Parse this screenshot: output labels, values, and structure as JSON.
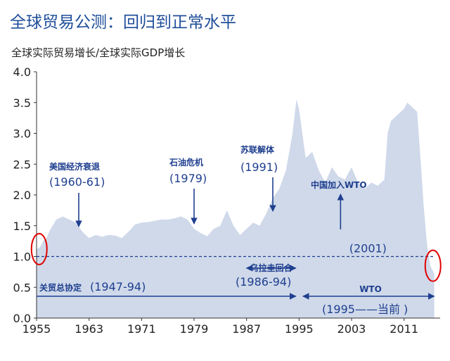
{
  "title": "全球贸易公测：回归到正常水平",
  "subtitle": "全球实际贸易增长/全球实际GDP增长",
  "chart_data": {
    "type": "area",
    "ylim": [
      0,
      4.0
    ],
    "yticks": [
      "0.0",
      "0.5",
      "1.0",
      "1.5",
      "2.0",
      "2.5",
      "3.0",
      "3.5",
      "4.0"
    ],
    "xticks": [
      {
        "year": 1955,
        "label": "1955"
      },
      {
        "year": 1963,
        "label": "1963"
      },
      {
        "year": 1971,
        "label": "1971"
      },
      {
        "year": 1979,
        "label": "1979"
      },
      {
        "year": 1987,
        "label": "1987"
      },
      {
        "year": 1995,
        "label": "1995"
      },
      {
        "year": 2003,
        "label": "2003"
      },
      {
        "year": 2011,
        "label": "2011"
      }
    ],
    "xlim": [
      1955,
      2016.5
    ],
    "reference_line": {
      "value": 1.0,
      "label": "(2001)"
    },
    "series": [
      {
        "color": "#cfd9ea",
        "points": [
          [
            1955,
            1.12
          ],
          [
            1955.5,
            1.15
          ],
          [
            1956,
            1.25
          ],
          [
            1956.5,
            1.3
          ],
          [
            1957,
            1.42
          ],
          [
            1958,
            1.6
          ],
          [
            1959,
            1.65
          ],
          [
            1960,
            1.6
          ],
          [
            1961,
            1.55
          ],
          [
            1962,
            1.4
          ],
          [
            1963,
            1.3
          ],
          [
            1964,
            1.35
          ],
          [
            1965,
            1.32
          ],
          [
            1966,
            1.35
          ],
          [
            1967,
            1.34
          ],
          [
            1968,
            1.3
          ],
          [
            1969,
            1.4
          ],
          [
            1970,
            1.52
          ],
          [
            1971,
            1.55
          ],
          [
            1972,
            1.56
          ],
          [
            1973,
            1.58
          ],
          [
            1974,
            1.6
          ],
          [
            1975,
            1.6
          ],
          [
            1976,
            1.62
          ],
          [
            1977,
            1.65
          ],
          [
            1978,
            1.6
          ],
          [
            1979,
            1.45
          ],
          [
            1980,
            1.38
          ],
          [
            1981,
            1.33
          ],
          [
            1982,
            1.45
          ],
          [
            1983,
            1.5
          ],
          [
            1984,
            1.75
          ],
          [
            1985,
            1.5
          ],
          [
            1986,
            1.35
          ],
          [
            1987,
            1.45
          ],
          [
            1988,
            1.55
          ],
          [
            1989,
            1.5
          ],
          [
            1990,
            1.7
          ],
          [
            1991,
            1.95
          ],
          [
            1992,
            2.1
          ],
          [
            1993,
            2.4
          ],
          [
            1994,
            3.0
          ],
          [
            1994.6,
            3.55
          ],
          [
            1995,
            3.4
          ],
          [
            1995.5,
            3.0
          ],
          [
            1996,
            2.6
          ],
          [
            1997,
            2.7
          ],
          [
            1998,
            2.4
          ],
          [
            1999,
            2.2
          ],
          [
            2000,
            2.45
          ],
          [
            2001,
            2.3
          ],
          [
            2002,
            2.25
          ],
          [
            2003,
            2.45
          ],
          [
            2004,
            2.2
          ],
          [
            2005,
            2.1
          ],
          [
            2006,
            2.2
          ],
          [
            2007,
            2.15
          ],
          [
            2008,
            2.25
          ],
          [
            2008.5,
            3.0
          ],
          [
            2009,
            3.2
          ],
          [
            2010,
            3.3
          ],
          [
            2011,
            3.4
          ],
          [
            2011.5,
            3.5
          ],
          [
            2012,
            3.45
          ],
          [
            2013,
            3.35
          ],
          [
            2013.5,
            2.6
          ],
          [
            2014,
            1.8
          ],
          [
            2014.5,
            1.2
          ],
          [
            2015,
            0.85
          ],
          [
            2015.6,
            0.72
          ]
        ]
      }
    ],
    "events": [
      {
        "title": "美国经济衰退",
        "period": "(1960-61)",
        "arrow": "down",
        "arrow_x": 1961
      },
      {
        "title": "石油危机",
        "period": "(1979)",
        "arrow": "down",
        "arrow_x": 1979
      },
      {
        "title": "苏联解体",
        "period": "(1991)",
        "arrow": "down",
        "arrow_x": 1991
      },
      {
        "title": "中国加入WTO",
        "period": "",
        "arrow": "up",
        "arrow_x": 2001
      },
      {
        "title": "乌拉圭回合",
        "period": "(1986-94)",
        "arrow": "double",
        "from": 1987,
        "to": 1994.5
      },
      {
        "title": "关贸总协定",
        "period": "(1947-94)",
        "arrow": "right",
        "from": 1955,
        "to": 1994.5
      },
      {
        "title": "WTO",
        "period": "(1995——当前 )",
        "arrow": "double",
        "from": 1995.6,
        "to": 2015.6
      }
    ],
    "highlight_circles": [
      "1955",
      "2015"
    ],
    "grid": false
  }
}
